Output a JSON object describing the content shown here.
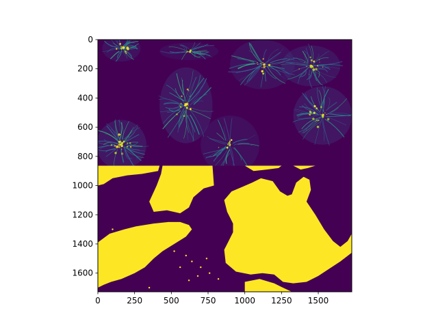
{
  "chart_data": {
    "type": "heatmap",
    "title": "",
    "xlabel": "",
    "ylabel": "",
    "colormap": "viridis",
    "xlim": [
      0,
      1728
    ],
    "ylim": [
      1728,
      0
    ],
    "x_ticks": [
      {
        "value": 0,
        "label": "0"
      },
      {
        "value": 250,
        "label": "250"
      },
      {
        "value": 500,
        "label": "500"
      },
      {
        "value": 750,
        "label": "750"
      },
      {
        "value": 1000,
        "label": "1000"
      },
      {
        "value": 1250,
        "label": "1250"
      },
      {
        "value": 1500,
        "label": "1500"
      }
    ],
    "y_ticks": [
      {
        "value": 0,
        "label": "0"
      },
      {
        "value": 200,
        "label": "200"
      },
      {
        "value": 400,
        "label": "400"
      },
      {
        "value": 600,
        "label": "600"
      },
      {
        "value": 800,
        "label": "800"
      },
      {
        "value": 1000,
        "label": "1000"
      },
      {
        "value": 1200,
        "label": "1200"
      },
      {
        "value": 1400,
        "label": "1400"
      },
      {
        "value": 1600,
        "label": "1600"
      }
    ],
    "upper_half": {
      "content": "fluorescence microscopy intensity image of cells with filament structures",
      "y_range": [
        0,
        864
      ],
      "background_color": "#440154",
      "filament_color": "#31688e",
      "bright_color": "#fde725",
      "cells": [
        {
          "cx": 160,
          "cy": 60,
          "rx": 130,
          "ry": 90,
          "intensity": 0.6
        },
        {
          "cx": 600,
          "cy": 450,
          "rx": 180,
          "ry": 260,
          "intensity": 0.75
        },
        {
          "cx": 1120,
          "cy": 170,
          "rx": 220,
          "ry": 170,
          "intensity": 0.6
        },
        {
          "cx": 1450,
          "cy": 180,
          "rx": 200,
          "ry": 140,
          "intensity": 0.7
        },
        {
          "cx": 1530,
          "cy": 520,
          "rx": 200,
          "ry": 200,
          "intensity": 0.75
        },
        {
          "cx": 160,
          "cy": 720,
          "rx": 170,
          "ry": 170,
          "intensity": 0.8
        },
        {
          "cx": 900,
          "cy": 720,
          "rx": 200,
          "ry": 200,
          "intensity": 0.5
        },
        {
          "cx": 620,
          "cy": 80,
          "rx": 200,
          "ry": 60,
          "intensity": 0.4
        }
      ]
    },
    "lower_half": {
      "content": "binary segmentation mask",
      "y_range": [
        864,
        1728
      ],
      "foreground_color": "#fde725",
      "background_color": "#440154",
      "regions": [
        [
          [
            0,
            864
          ],
          [
            420,
            864
          ],
          [
            410,
            900
          ],
          [
            300,
            920
          ],
          [
            200,
            930
          ],
          [
            100,
            950
          ],
          [
            40,
            990
          ],
          [
            0,
            1000
          ]
        ],
        [
          [
            440,
            864
          ],
          [
            780,
            864
          ],
          [
            790,
            1000
          ],
          [
            720,
            1020
          ],
          [
            650,
            1080
          ],
          [
            620,
            1150
          ],
          [
            560,
            1190
          ],
          [
            470,
            1170
          ],
          [
            380,
            1180
          ],
          [
            350,
            1110
          ],
          [
            400,
            1000
          ],
          [
            430,
            920
          ]
        ],
        [
          [
            1000,
            864
          ],
          [
            1250,
            864
          ],
          [
            1230,
            880
          ],
          [
            1150,
            890
          ],
          [
            1060,
            900
          ]
        ],
        [
          [
            1330,
            864
          ],
          [
            1480,
            864
          ],
          [
            1430,
            880
          ],
          [
            1380,
            890
          ]
        ],
        [
          [
            1050,
            980
          ],
          [
            1110,
            950
          ],
          [
            1190,
            970
          ],
          [
            1240,
            1040
          ],
          [
            1290,
            1070
          ],
          [
            1320,
            1060
          ],
          [
            1350,
            980
          ],
          [
            1400,
            940
          ],
          [
            1440,
            960
          ],
          [
            1450,
            1030
          ],
          [
            1420,
            1110
          ],
          [
            1480,
            1200
          ],
          [
            1540,
            1300
          ],
          [
            1600,
            1380
          ],
          [
            1650,
            1420
          ],
          [
            1700,
            1380
          ],
          [
            1728,
            1330
          ],
          [
            1728,
            1460
          ],
          [
            1650,
            1520
          ],
          [
            1560,
            1580
          ],
          [
            1500,
            1620
          ],
          [
            1420,
            1660
          ],
          [
            1330,
            1670
          ],
          [
            1260,
            1660
          ],
          [
            1200,
            1610
          ],
          [
            1120,
            1600
          ],
          [
            1040,
            1610
          ],
          [
            940,
            1590
          ],
          [
            870,
            1530
          ],
          [
            860,
            1440
          ],
          [
            890,
            1380
          ],
          [
            920,
            1320
          ],
          [
            920,
            1260
          ],
          [
            880,
            1180
          ],
          [
            860,
            1100
          ],
          [
            910,
            1040
          ],
          [
            980,
            1010
          ]
        ],
        [
          [
            0,
            1390
          ],
          [
            80,
            1330
          ],
          [
            180,
            1300
          ],
          [
            260,
            1280
          ],
          [
            380,
            1260
          ],
          [
            480,
            1250
          ],
          [
            560,
            1250
          ],
          [
            620,
            1270
          ],
          [
            640,
            1300
          ],
          [
            600,
            1350
          ],
          [
            520,
            1400
          ],
          [
            440,
            1450
          ],
          [
            380,
            1500
          ],
          [
            320,
            1560
          ],
          [
            250,
            1600
          ],
          [
            160,
            1640
          ],
          [
            90,
            1660
          ],
          [
            40,
            1680
          ],
          [
            0,
            1700
          ]
        ],
        [
          [
            1000,
            1660
          ],
          [
            1100,
            1640
          ],
          [
            1200,
            1670
          ],
          [
            1260,
            1700
          ],
          [
            1320,
            1728
          ],
          [
            1000,
            1728
          ]
        ]
      ]
    }
  }
}
